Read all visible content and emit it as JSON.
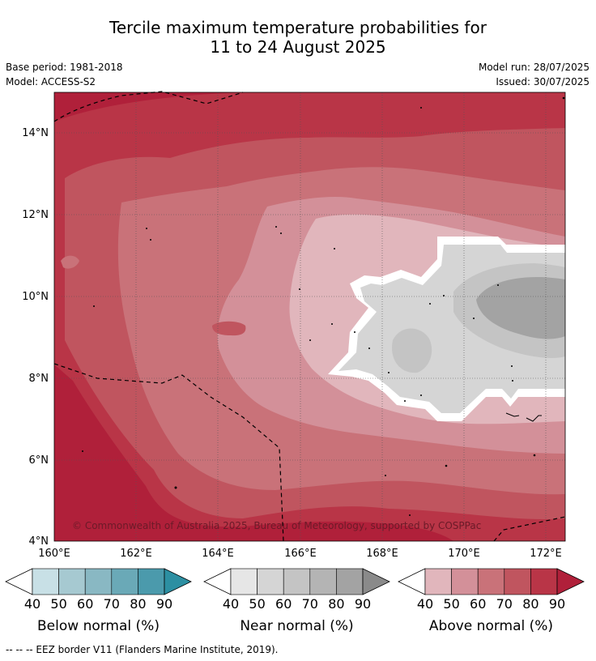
{
  "title": {
    "line1": "Tercile maximum temperature probabilities for",
    "line2": "11 to 24 August 2025"
  },
  "meta": {
    "base_period": "Base period: 1981-2018",
    "model": "Model: ACCESS-S2",
    "model_run": "Model run: 28/07/2025",
    "issued": "Issued: 30/07/2025"
  },
  "map": {
    "lat_labels": [
      "14°N",
      "12°N",
      "10°N",
      "8°N",
      "6°N",
      "4°N"
    ],
    "lon_labels": [
      "160°E",
      "162°E",
      "164°E",
      "166°E",
      "168°E",
      "170°E",
      "172°E"
    ],
    "copyright": "© Commonwealth of Australia 2025, Bureau of Meteorology, supported by COSPPac"
  },
  "legends": [
    {
      "title": "Below normal (%)",
      "ticks": [
        "40",
        "50",
        "60",
        "70",
        "80",
        "90"
      ],
      "colors": [
        "#ffffff",
        "#c8e0e6",
        "#a6c9d1",
        "#89b8c3",
        "#6aa9b7",
        "#4b9aac",
        "#2c8fa2"
      ]
    },
    {
      "title": "Near normal (%)",
      "ticks": [
        "40",
        "50",
        "60",
        "70",
        "80",
        "90"
      ],
      "colors": [
        "#ffffff",
        "#e6e6e6",
        "#d5d5d5",
        "#c4c4c4",
        "#b4b4b4",
        "#a3a3a3",
        "#8a8a8a"
      ]
    },
    {
      "title": "Above normal (%)",
      "ticks": [
        "40",
        "50",
        "60",
        "70",
        "80",
        "90"
      ],
      "colors": [
        "#ffffff",
        "#e1b6bc",
        "#d39099",
        "#c97279",
        "#c0555f",
        "#b93547",
        "#b0203a"
      ]
    }
  ],
  "footnote": "--  --  -- EEZ border V11 (Flanders Marine Institute, 2019)."
}
